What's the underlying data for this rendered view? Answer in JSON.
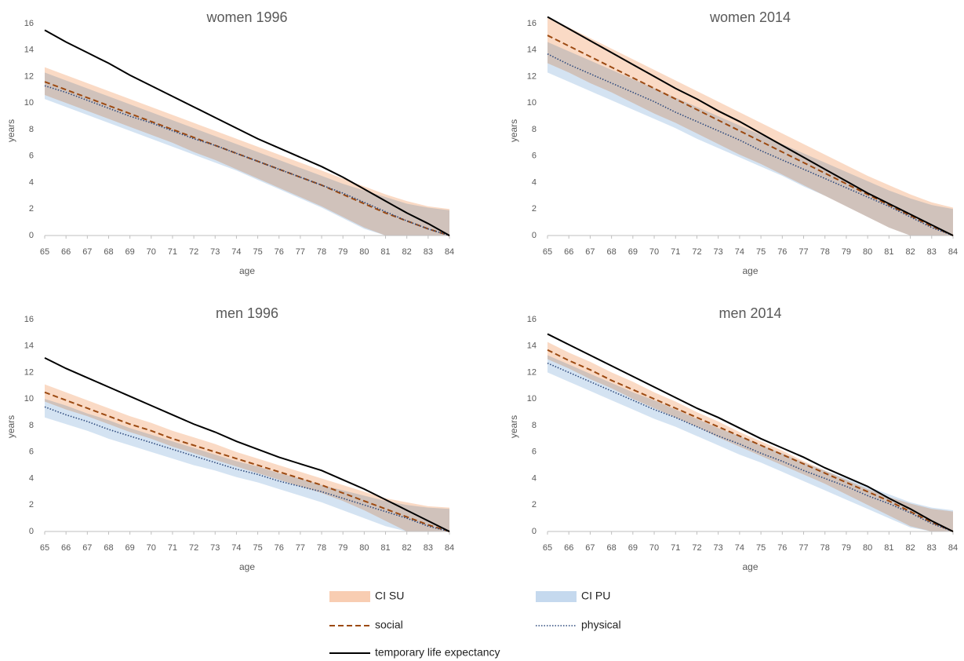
{
  "chart_data": [
    {
      "type": "line",
      "title": "women 1996",
      "xlabel": "age",
      "ylabel": "years",
      "x": [
        65,
        66,
        67,
        68,
        69,
        70,
        71,
        72,
        73,
        74,
        75,
        76,
        77,
        78,
        79,
        80,
        81,
        82,
        83,
        84
      ],
      "xlim": [
        65,
        84
      ],
      "xticks": [
        65,
        66,
        67,
        68,
        69,
        70,
        71,
        72,
        73,
        74,
        75,
        76,
        77,
        78,
        79,
        80,
        81,
        82,
        83,
        84
      ],
      "ylim": [
        0,
        17
      ],
      "yticks": [
        0,
        2,
        4,
        6,
        8,
        10,
        12,
        14,
        16
      ],
      "series": [
        {
          "name": "CI SU",
          "color": "#f8cdb2",
          "kind": "band",
          "upper": [
            12.7,
            12.1,
            11.5,
            10.9,
            10.3,
            9.7,
            9.1,
            8.5,
            7.9,
            7.3,
            6.7,
            6.1,
            5.5,
            4.9,
            4.3,
            3.7,
            3.1,
            2.6,
            2.2,
            2.0
          ],
          "lower": [
            10.6,
            10.0,
            9.4,
            8.8,
            8.2,
            7.6,
            7.0,
            6.3,
            5.7,
            5.0,
            4.3,
            3.6,
            2.9,
            2.2,
            1.4,
            0.6,
            0,
            0,
            0,
            0
          ]
        },
        {
          "name": "CI PU",
          "color": "#c5d9ee",
          "kind": "band",
          "upper": [
            12.3,
            11.7,
            11.1,
            10.5,
            9.9,
            9.3,
            8.7,
            8.1,
            7.5,
            6.9,
            6.3,
            5.7,
            5.1,
            4.5,
            3.9,
            3.4,
            2.9,
            2.4,
            2.1,
            1.9
          ],
          "lower": [
            10.3,
            9.7,
            9.1,
            8.5,
            7.9,
            7.3,
            6.7,
            6.1,
            5.5,
            4.9,
            4.2,
            3.5,
            2.8,
            2.1,
            1.3,
            0.5,
            0,
            0,
            0,
            0
          ]
        },
        {
          "name": "social",
          "color": "#9c4a12",
          "dash": "dashed",
          "values": [
            11.6,
            11.0,
            10.4,
            9.8,
            9.2,
            8.6,
            8.0,
            7.4,
            6.8,
            6.2,
            5.6,
            5.0,
            4.4,
            3.8,
            3.1,
            2.4,
            1.7,
            1.1,
            0.5,
            0
          ]
        },
        {
          "name": "physical",
          "color": "#2e4a7d",
          "dash": "dotted",
          "values": [
            11.3,
            10.8,
            10.2,
            9.6,
            9.0,
            8.5,
            7.9,
            7.3,
            6.8,
            6.2,
            5.6,
            5.0,
            4.4,
            3.8,
            3.2,
            2.5,
            1.8,
            1.1,
            0.5,
            0
          ]
        },
        {
          "name": "temporary life expectancy",
          "color": "#000000",
          "dash": "solid",
          "values": [
            15.5,
            14.6,
            13.8,
            13.0,
            12.1,
            11.3,
            10.5,
            9.7,
            8.9,
            8.1,
            7.3,
            6.6,
            5.9,
            5.2,
            4.4,
            3.5,
            2.6,
            1.7,
            0.9,
            0
          ]
        }
      ]
    },
    {
      "type": "line",
      "title": "women 2014",
      "xlabel": "age",
      "ylabel": "years",
      "x": [
        65,
        66,
        67,
        68,
        69,
        70,
        71,
        72,
        73,
        74,
        75,
        76,
        77,
        78,
        79,
        80,
        81,
        82,
        83,
        84
      ],
      "xlim": [
        65,
        84
      ],
      "xticks": [
        65,
        66,
        67,
        68,
        69,
        70,
        71,
        72,
        73,
        74,
        75,
        76,
        77,
        78,
        79,
        80,
        81,
        82,
        83,
        84
      ],
      "ylim": [
        0,
        17
      ],
      "yticks": [
        0,
        2,
        4,
        6,
        8,
        10,
        12,
        14,
        16
      ],
      "series": [
        {
          "color": "#f8cdb2",
          "kind": "band",
          "upper": [
            16.5,
            15.7,
            14.9,
            14.1,
            13.3,
            12.5,
            11.7,
            10.9,
            10.1,
            9.3,
            8.5,
            7.7,
            6.9,
            6.1,
            5.3,
            4.5,
            3.8,
            3.1,
            2.5,
            2.1
          ],
          "lower": [
            13.0,
            12.3,
            11.5,
            10.8,
            10.0,
            9.2,
            8.5,
            7.7,
            6.9,
            6.1,
            5.4,
            4.6,
            3.8,
            3.0,
            2.2,
            1.4,
            0.6,
            0,
            0,
            0
          ]
        },
        {
          "color": "#c5d9ee",
          "kind": "band",
          "upper": [
            14.6,
            13.9,
            13.2,
            12.5,
            11.8,
            11.1,
            10.4,
            9.7,
            9.0,
            8.3,
            7.6,
            6.9,
            6.2,
            5.5,
            4.8,
            4.1,
            3.4,
            2.8,
            2.3,
            2.0
          ],
          "lower": [
            12.3,
            11.6,
            10.9,
            10.2,
            9.5,
            8.8,
            8.1,
            7.3,
            6.6,
            5.9,
            5.2,
            4.5,
            3.7,
            3.0,
            2.2,
            1.4,
            0.6,
            0,
            0,
            0
          ]
        },
        {
          "color": "#9c4a12",
          "dash": "dashed",
          "values": [
            15.1,
            14.3,
            13.5,
            12.7,
            11.9,
            11.1,
            10.3,
            9.5,
            8.7,
            7.9,
            7.1,
            6.3,
            5.5,
            4.7,
            3.9,
            3.1,
            2.3,
            1.5,
            0.7,
            0
          ]
        },
        {
          "color": "#2e4a7d",
          "dash": "dotted",
          "values": [
            13.7,
            12.9,
            12.2,
            11.5,
            10.8,
            10.1,
            9.3,
            8.6,
            7.9,
            7.2,
            6.4,
            5.7,
            5.0,
            4.3,
            3.6,
            2.9,
            2.2,
            1.4,
            0.6,
            0
          ]
        },
        {
          "color": "#000000",
          "dash": "solid",
          "values": [
            16.5,
            15.6,
            14.7,
            13.8,
            12.9,
            12.0,
            11.1,
            10.3,
            9.4,
            8.6,
            7.7,
            6.8,
            5.9,
            5.0,
            4.1,
            3.2,
            2.4,
            1.6,
            0.8,
            0
          ]
        }
      ]
    },
    {
      "type": "line",
      "title": "men 1996",
      "xlabel": "age",
      "ylabel": "years",
      "x": [
        65,
        66,
        67,
        68,
        69,
        70,
        71,
        72,
        73,
        74,
        75,
        76,
        77,
        78,
        79,
        80,
        81,
        82,
        83,
        84
      ],
      "xlim": [
        65,
        84
      ],
      "xticks": [
        65,
        66,
        67,
        68,
        69,
        70,
        71,
        72,
        73,
        74,
        75,
        76,
        77,
        78,
        79,
        80,
        81,
        82,
        83,
        84
      ],
      "ylim": [
        0,
        17
      ],
      "yticks": [
        0,
        2,
        4,
        6,
        8,
        10,
        12,
        14,
        16
      ],
      "series": [
        {
          "color": "#f8cdb2",
          "kind": "band",
          "upper": [
            11.1,
            10.5,
            9.9,
            9.3,
            8.7,
            8.2,
            7.6,
            7.1,
            6.6,
            6.0,
            5.5,
            5.0,
            4.5,
            4.0,
            3.5,
            3.0,
            2.5,
            2.2,
            1.9,
            1.8
          ],
          "lower": [
            9.8,
            9.2,
            8.7,
            8.1,
            7.5,
            7.0,
            6.4,
            5.9,
            5.4,
            4.9,
            4.4,
            3.9,
            3.4,
            2.9,
            2.3,
            1.6,
            0.8,
            0,
            0,
            0
          ]
        },
        {
          "color": "#c5d9ee",
          "kind": "band",
          "upper": [
            10.0,
            9.5,
            8.9,
            8.4,
            7.8,
            7.3,
            6.8,
            6.3,
            5.8,
            5.3,
            4.9,
            4.4,
            4.0,
            3.5,
            3.1,
            2.7,
            2.3,
            2.0,
            1.8,
            1.7
          ],
          "lower": [
            8.6,
            8.1,
            7.6,
            7.0,
            6.5,
            6.0,
            5.5,
            5.0,
            4.6,
            4.1,
            3.7,
            3.2,
            2.7,
            2.2,
            1.6,
            1.0,
            0.4,
            0,
            0,
            0
          ]
        },
        {
          "color": "#9c4a12",
          "dash": "dashed",
          "values": [
            10.5,
            9.9,
            9.3,
            8.7,
            8.1,
            7.6,
            7.0,
            6.5,
            6.0,
            5.5,
            5.0,
            4.5,
            4.0,
            3.5,
            2.9,
            2.3,
            1.7,
            1.1,
            0.5,
            0
          ]
        },
        {
          "color": "#2e4a7d",
          "dash": "dotted",
          "values": [
            9.4,
            8.8,
            8.3,
            7.7,
            7.2,
            6.7,
            6.2,
            5.7,
            5.2,
            4.7,
            4.3,
            3.8,
            3.4,
            3.0,
            2.5,
            2.0,
            1.5,
            1.0,
            0.4,
            0
          ]
        },
        {
          "color": "#000000",
          "dash": "solid",
          "values": [
            13.1,
            12.3,
            11.6,
            10.9,
            10.2,
            9.5,
            8.8,
            8.1,
            7.5,
            6.8,
            6.2,
            5.6,
            5.1,
            4.6,
            3.9,
            3.2,
            2.4,
            1.6,
            0.8,
            0
          ]
        }
      ]
    },
    {
      "type": "line",
      "title": "men 2014",
      "xlabel": "age",
      "ylabel": "years",
      "x": [
        65,
        66,
        67,
        68,
        69,
        70,
        71,
        72,
        73,
        74,
        75,
        76,
        77,
        78,
        79,
        80,
        81,
        82,
        83,
        84
      ],
      "xlim": [
        65,
        84
      ],
      "xticks": [
        65,
        66,
        67,
        68,
        69,
        70,
        71,
        72,
        73,
        74,
        75,
        76,
        77,
        78,
        79,
        80,
        81,
        82,
        83,
        84
      ],
      "ylim": [
        0,
        17
      ],
      "yticks": [
        0,
        2,
        4,
        6,
        8,
        10,
        12,
        14,
        16
      ],
      "series": [
        {
          "color": "#f8cdb2",
          "kind": "band",
          "upper": [
            14.3,
            13.5,
            12.8,
            12.0,
            11.3,
            10.5,
            9.8,
            9.0,
            8.3,
            7.5,
            6.8,
            6.1,
            5.3,
            4.6,
            3.9,
            3.2,
            2.6,
            2.1,
            1.7,
            1.5
          ],
          "lower": [
            13.0,
            12.3,
            11.5,
            10.8,
            10.0,
            9.3,
            8.6,
            7.9,
            7.1,
            6.4,
            5.7,
            5.0,
            4.3,
            3.6,
            2.8,
            2.0,
            1.2,
            0.4,
            0,
            0
          ]
        },
        {
          "color": "#c5d9ee",
          "kind": "band",
          "upper": [
            13.3,
            12.6,
            11.9,
            11.2,
            10.5,
            9.9,
            9.2,
            8.5,
            7.8,
            7.2,
            6.5,
            5.9,
            5.2,
            4.6,
            4.0,
            3.4,
            2.8,
            2.2,
            1.8,
            1.6
          ],
          "lower": [
            12.0,
            11.3,
            10.6,
            9.9,
            9.2,
            8.5,
            7.9,
            7.2,
            6.5,
            5.8,
            5.2,
            4.5,
            3.8,
            3.1,
            2.4,
            1.7,
            1.0,
            0.3,
            0,
            0
          ]
        },
        {
          "color": "#9c4a12",
          "dash": "dashed",
          "values": [
            13.7,
            12.9,
            12.2,
            11.4,
            10.7,
            10.0,
            9.3,
            8.6,
            7.9,
            7.2,
            6.5,
            5.8,
            5.1,
            4.4,
            3.7,
            3.0,
            2.3,
            1.5,
            0.7,
            0
          ]
        },
        {
          "color": "#2e4a7d",
          "dash": "dotted",
          "values": [
            12.7,
            12.0,
            11.3,
            10.6,
            9.9,
            9.2,
            8.6,
            7.9,
            7.2,
            6.6,
            5.9,
            5.3,
            4.6,
            4.0,
            3.4,
            2.7,
            2.1,
            1.4,
            0.6,
            0
          ]
        },
        {
          "color": "#000000",
          "dash": "solid",
          "values": [
            14.9,
            14.1,
            13.3,
            12.5,
            11.7,
            10.9,
            10.1,
            9.3,
            8.6,
            7.8,
            7.0,
            6.3,
            5.6,
            4.8,
            4.1,
            3.4,
            2.5,
            1.7,
            0.8,
            0
          ]
        }
      ]
    }
  ]
}
